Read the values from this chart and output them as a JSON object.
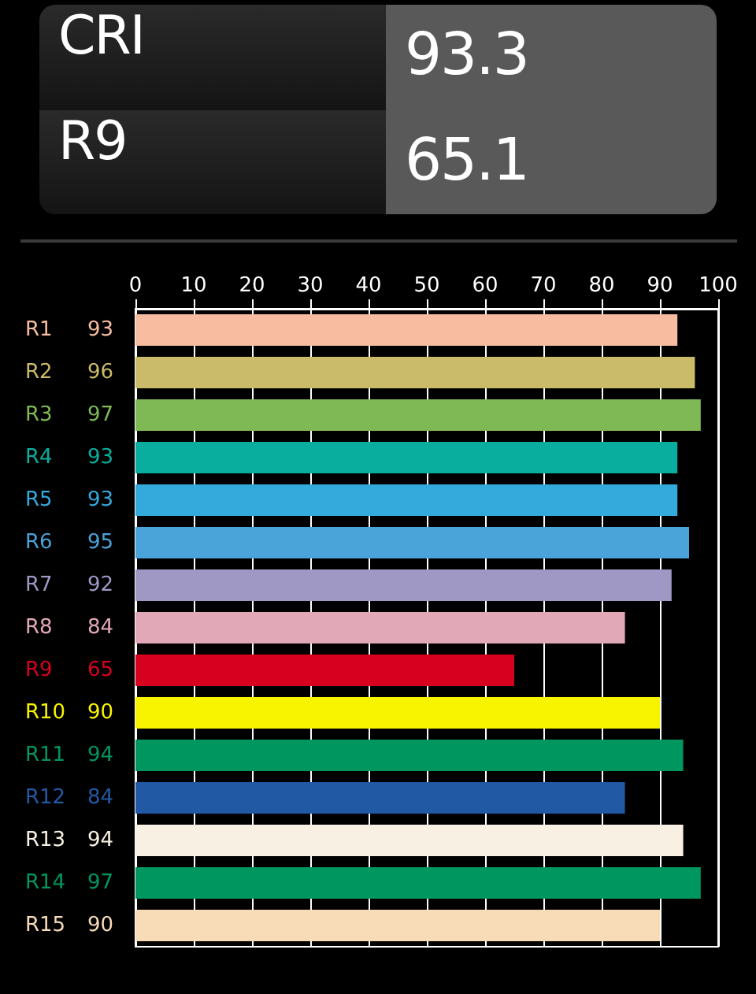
{
  "chart_data": {
    "type": "bar",
    "orientation": "horizontal",
    "annotations": [
      "CRI",
      "93.3",
      "R9",
      "65.1"
    ],
    "categories": [
      "R1",
      "R2",
      "R3",
      "R4",
      "R5",
      "R6",
      "R7",
      "R8",
      "R9",
      "R10",
      "R11",
      "R12",
      "R13",
      "R14",
      "R15"
    ],
    "values": [
      93,
      96,
      97,
      93,
      93,
      95,
      92,
      84,
      65,
      90,
      94,
      84,
      94,
      97,
      90
    ],
    "colors": [
      "#f8bca0",
      "#c9bb6a",
      "#7fb955",
      "#0aae9e",
      "#34a9dc",
      "#4aa3d9",
      "#a098c4",
      "#e1a8b8",
      "#d8001f",
      "#f8f400",
      "#009660",
      "#2259a4",
      "#f8f0e2",
      "#009660",
      "#f8dcb8"
    ],
    "xlim": [
      0,
      100
    ],
    "xticks": [
      0,
      10,
      20,
      30,
      40,
      50,
      60,
      70,
      80,
      90,
      100
    ],
    "grid": "x",
    "data_labels": true
  }
}
